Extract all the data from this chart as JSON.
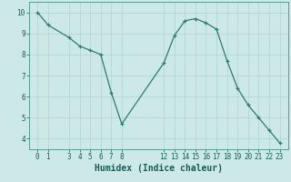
{
  "x": [
    0,
    1,
    3,
    4,
    5,
    6,
    7,
    8,
    12,
    13,
    14,
    15,
    16,
    17,
    18,
    19,
    20,
    21,
    22,
    23
  ],
  "y": [
    10.0,
    9.4,
    8.8,
    8.4,
    8.2,
    8.0,
    6.2,
    4.7,
    7.6,
    8.9,
    9.6,
    9.7,
    9.5,
    9.2,
    7.7,
    6.4,
    5.6,
    5.0,
    4.4,
    3.8
  ],
  "line_color": "#2e7b6e",
  "bg_color": "#cce9e7",
  "grid_color": "#afd4d0",
  "xlabel": "Humidex (Indice chaleur)",
  "ylim": [
    3.5,
    10.5
  ],
  "yticks": [
    4,
    5,
    6,
    7,
    8,
    9,
    10
  ],
  "xticks": [
    0,
    1,
    3,
    4,
    5,
    6,
    7,
    8,
    12,
    13,
    14,
    15,
    16,
    17,
    18,
    19,
    20,
    21,
    22,
    23
  ],
  "tick_label_color": "#1a5c54",
  "axis_color": "#4a9088",
  "xlabel_fontsize": 7,
  "tick_fontsize": 5.5,
  "marker": "+"
}
